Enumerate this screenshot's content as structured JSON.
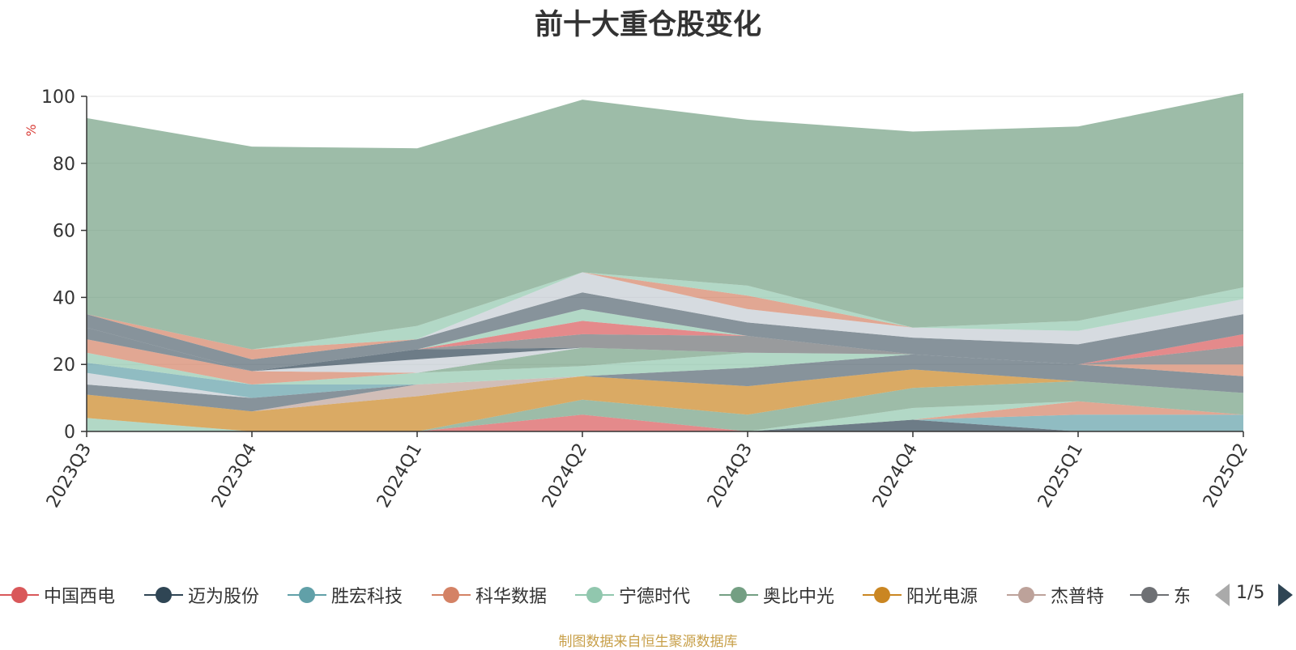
{
  "title": "前十大重仓股变化",
  "source_note": "制图数据来自恒生聚源数据库",
  "pager": {
    "text": "1/5"
  },
  "chart_data": {
    "type": "area",
    "stacked": true,
    "title": "前十大重仓股变化",
    "ylabel": "%",
    "ylim": [
      0,
      100
    ],
    "yticks": [
      0,
      20,
      40,
      60,
      80,
      100
    ],
    "categories": [
      "2023Q3",
      "2023Q4",
      "2024Q1",
      "2024Q2",
      "2024Q3",
      "2024Q4",
      "2025Q1",
      "2025Q2"
    ],
    "legend_position": "bottom",
    "series": [
      {
        "name": "中国西电",
        "color": "#d9585a",
        "values": [
          0,
          0,
          0,
          5,
          0,
          0,
          0,
          0
        ]
      },
      {
        "name": "迈为股份",
        "color": "#2f4554",
        "values": [
          0,
          0,
          0,
          0,
          0,
          3.5,
          0,
          0
        ]
      },
      {
        "name": "胜宏科技",
        "color": "#61a0a8",
        "values": [
          0,
          0,
          0,
          0,
          0,
          0,
          5,
          5
        ]
      },
      {
        "name": "科华数据",
        "color": "#d48265",
        "values": [
          0,
          0,
          0,
          0,
          0,
          0,
          4,
          0
        ]
      },
      {
        "name": "宁德时代",
        "color": "#91c7ae",
        "values": [
          4,
          0,
          0,
          0,
          0,
          3.5,
          0,
          0
        ]
      },
      {
        "name": "奥比中光",
        "color": "#749f83",
        "values": [
          0,
          0,
          0,
          4.5,
          5,
          6,
          6,
          6.5
        ]
      },
      {
        "name": "阳光电源",
        "color": "#ca8622",
        "values": [
          7,
          6,
          10.5,
          7,
          8.5,
          5.5,
          0,
          0
        ]
      },
      {
        "name": "杰普特",
        "color": "#bda29a",
        "values": [
          0,
          0,
          3.5,
          0,
          0,
          0,
          0,
          0
        ]
      },
      {
        "name": "东方电缆",
        "color": "#6e7074",
        "values": [
          0,
          0,
          0,
          0,
          0,
          0,
          0,
          0
        ]
      }
    ],
    "background_layers": [
      {
        "color": "#546570",
        "values": [
          3,
          4,
          0,
          0,
          5.5,
          4.5,
          5,
          5
        ]
      },
      {
        "color": "#c4ccd3",
        "values": [
          3.5,
          0,
          0,
          0,
          0,
          0,
          0,
          0
        ]
      },
      {
        "color": "#61a0a8",
        "values": [
          3,
          4,
          0,
          0,
          0,
          0,
          0,
          0
        ]
      },
      {
        "color": "#91c7ae",
        "values": [
          3,
          0,
          3.5,
          3,
          4.5,
          0,
          0,
          0
        ]
      },
      {
        "color": "#d48265",
        "values": [
          4,
          4,
          0,
          0,
          0,
          0,
          0,
          0
        ]
      },
      {
        "color": "#546570",
        "values": [
          3.5,
          0,
          0,
          0,
          0,
          0,
          0,
          0
        ]
      },
      {
        "color": "#d48265",
        "values": [
          0,
          0,
          0,
          0,
          0,
          0,
          0,
          3.5
        ]
      },
      {
        "color": "#6e7074",
        "values": [
          0,
          0,
          0,
          0,
          0,
          0,
          0,
          5.5
        ]
      },
      {
        "color": "#d9585a",
        "values": [
          0,
          0,
          0,
          0,
          0,
          0,
          0,
          3.5
        ]
      },
      {
        "color": "#749f83",
        "values": [
          0,
          0,
          0,
          5.5,
          0,
          0,
          0,
          0
        ]
      },
      {
        "color": "#bda29a",
        "values": [
          0,
          0,
          0,
          0,
          0,
          0,
          0,
          0
        ]
      },
      {
        "color": "#c4ccd3",
        "values": [
          0,
          0,
          4,
          0,
          0,
          0,
          0,
          0
        ]
      },
      {
        "color": "#2f4554",
        "values": [
          0,
          0,
          3,
          0,
          0,
          0,
          0,
          0
        ]
      },
      {
        "color": "#6e7074",
        "values": [
          0,
          0,
          0,
          4,
          5,
          0,
          0,
          0
        ]
      },
      {
        "color": "#d9585a",
        "values": [
          0,
          0,
          0,
          4,
          0,
          0,
          0,
          0
        ]
      },
      {
        "color": "#91c7ae",
        "values": [
          0,
          0,
          0,
          3.5,
          0,
          0,
          0,
          0
        ]
      },
      {
        "color": "#546570",
        "values": [
          4,
          3.5,
          3,
          5,
          4,
          5,
          6,
          6
        ]
      },
      {
        "color": "#6e7074",
        "values": [
          0,
          0,
          0,
          0,
          0,
          0,
          0,
          0
        ]
      },
      {
        "color": "#c4ccd3",
        "values": [
          0,
          0,
          0,
          6,
          4,
          3,
          4,
          4.5
        ]
      },
      {
        "color": "#d48265",
        "values": [
          0,
          3,
          0,
          0,
          4,
          0,
          0,
          0
        ]
      },
      {
        "color": "#91c7ae",
        "values": [
          0,
          0,
          4,
          0,
          3,
          0,
          3,
          3.5
        ]
      },
      {
        "color": "#749f83",
        "values": [
          58.5,
          60.5,
          53,
          51.5,
          49.5,
          58.5,
          58,
          58
        ]
      }
    ]
  }
}
